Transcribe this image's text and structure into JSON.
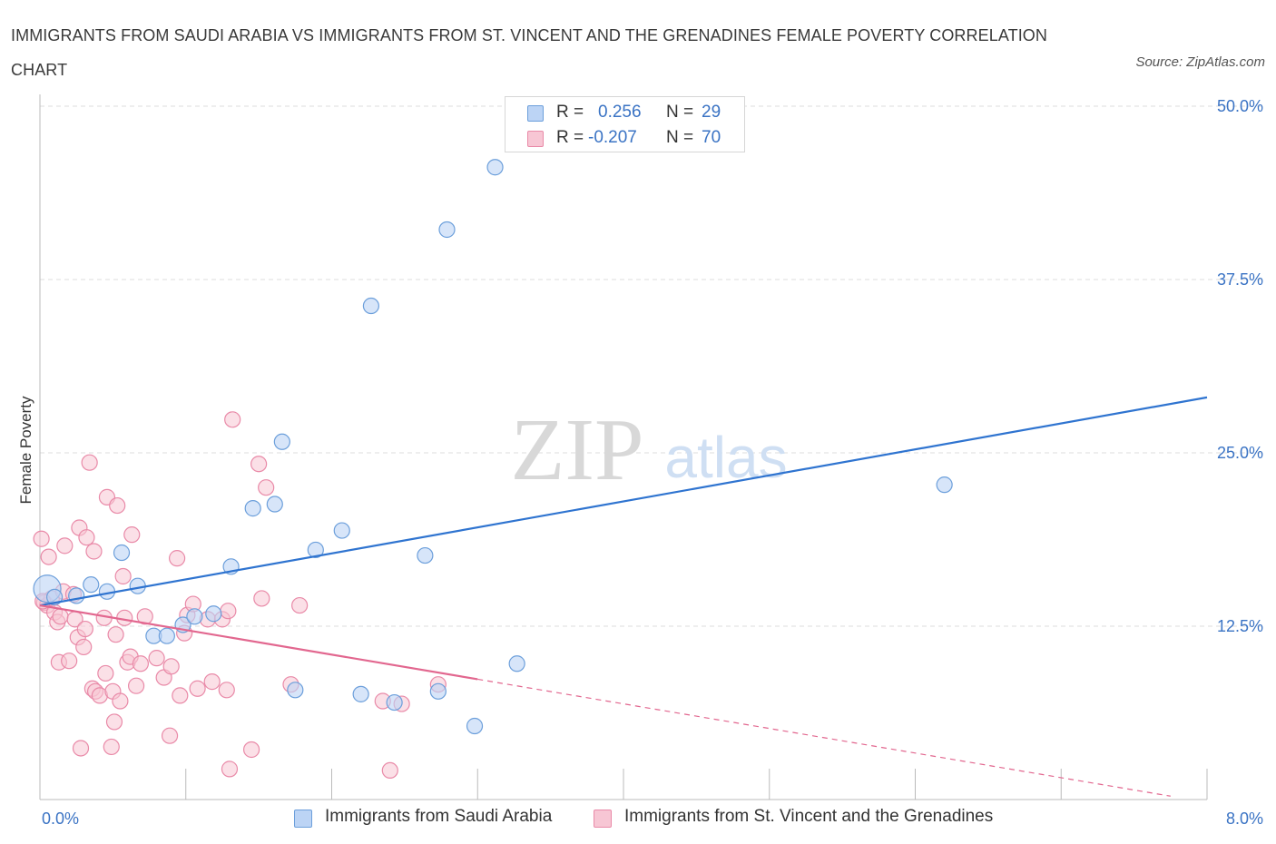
{
  "title": "IMMIGRANTS FROM SAUDI ARABIA VS IMMIGRANTS FROM ST. VINCENT AND THE GRENADINES FEMALE POVERTY CORRELATION CHART",
  "source": "Source: ZipAtlas.com",
  "watermark": {
    "zip": "ZIP",
    "atlas": "atlas"
  },
  "colors": {
    "series1_fill": "#bcd4f5",
    "series1_stroke": "#6c9fdb",
    "series1_line": "#2f74d0",
    "series2_fill": "#f7c6d4",
    "series2_stroke": "#e98aa8",
    "series2_line": "#e2678f",
    "axis_label": "#3a73c4",
    "grid": "#dddddd"
  },
  "legend": {
    "rows": [
      {
        "r_label": "R =",
        "r_value": "0.256",
        "n_label": "N =",
        "n_value": "29"
      },
      {
        "r_label": "R =",
        "r_value": "-0.207",
        "n_label": "N =",
        "n_value": "70"
      }
    ]
  },
  "bottom_legend": [
    "Immigrants from Saudi Arabia",
    "Immigrants from St. Vincent and the Grenadines"
  ],
  "chart_data": {
    "type": "scatter",
    "title": "IMMIGRANTS FROM SAUDI ARABIA VS IMMIGRANTS FROM ST. VINCENT AND THE GRENADINES FEMALE POVERTY CORRELATION CHART",
    "xlabel": "",
    "ylabel": "Female Poverty",
    "xlim": [
      0,
      8
    ],
    "ylim": [
      0,
      50
    ],
    "x_tick_labels": [
      "0.0%",
      "8.0%"
    ],
    "y_ticks": [
      12.5,
      25,
      37.5,
      50
    ],
    "y_tick_labels": [
      "12.5%",
      "25.0%",
      "37.5%",
      "50.0%"
    ],
    "series": [
      {
        "name": "Immigrants from Saudi Arabia",
        "R": 0.256,
        "N": 29,
        "trend": {
          "x": [
            0,
            8
          ],
          "y": [
            14.0,
            29.0
          ],
          "dashed_from": null
        },
        "points": [
          [
            0.05,
            15.2
          ],
          [
            0.1,
            14.6
          ],
          [
            0.25,
            14.7
          ],
          [
            0.35,
            15.5
          ],
          [
            0.46,
            15.0
          ],
          [
            0.56,
            17.8
          ],
          [
            0.67,
            15.4
          ],
          [
            0.78,
            11.8
          ],
          [
            0.87,
            11.8
          ],
          [
            0.98,
            12.6
          ],
          [
            1.06,
            13.2
          ],
          [
            1.19,
            13.4
          ],
          [
            1.31,
            16.8
          ],
          [
            1.46,
            21.0
          ],
          [
            1.61,
            21.3
          ],
          [
            1.66,
            25.8
          ],
          [
            1.75,
            7.9
          ],
          [
            1.89,
            18.0
          ],
          [
            2.07,
            19.4
          ],
          [
            2.27,
            35.6
          ],
          [
            2.2,
            7.6
          ],
          [
            2.43,
            7.0
          ],
          [
            2.64,
            17.6
          ],
          [
            2.73,
            7.8
          ],
          [
            2.79,
            41.1
          ],
          [
            2.98,
            5.3
          ],
          [
            3.12,
            45.6
          ],
          [
            3.27,
            9.8
          ],
          [
            6.2,
            22.7
          ]
        ]
      },
      {
        "name": "Immigrants from St. Vincent and the Grenadines",
        "R": -0.207,
        "N": 70,
        "trend": {
          "x": [
            0,
            8
          ],
          "y": [
            14.0,
            -0.2
          ],
          "dashed_from": 3.0
        },
        "points": [
          [
            0.01,
            18.8
          ],
          [
            0.03,
            14.2
          ],
          [
            0.05,
            14.0
          ],
          [
            0.06,
            17.5
          ],
          [
            0.08,
            14.5
          ],
          [
            0.1,
            13.5
          ],
          [
            0.12,
            12.8
          ],
          [
            0.13,
            9.9
          ],
          [
            0.14,
            13.2
          ],
          [
            0.16,
            15.0
          ],
          [
            0.17,
            18.3
          ],
          [
            0.2,
            10.0
          ],
          [
            0.23,
            14.8
          ],
          [
            0.24,
            13.0
          ],
          [
            0.26,
            11.7
          ],
          [
            0.27,
            19.6
          ],
          [
            0.28,
            3.7
          ],
          [
            0.3,
            11.0
          ],
          [
            0.31,
            12.3
          ],
          [
            0.32,
            18.9
          ],
          [
            0.34,
            24.3
          ],
          [
            0.36,
            8.0
          ],
          [
            0.37,
            17.9
          ],
          [
            0.38,
            7.8
          ],
          [
            0.41,
            7.5
          ],
          [
            0.44,
            13.1
          ],
          [
            0.45,
            9.1
          ],
          [
            0.46,
            21.8
          ],
          [
            0.49,
            3.8
          ],
          [
            0.5,
            7.8
          ],
          [
            0.51,
            5.6
          ],
          [
            0.52,
            11.9
          ],
          [
            0.53,
            21.2
          ],
          [
            0.55,
            7.1
          ],
          [
            0.57,
            16.1
          ],
          [
            0.58,
            13.1
          ],
          [
            0.6,
            9.9
          ],
          [
            0.62,
            10.3
          ],
          [
            0.63,
            19.1
          ],
          [
            0.66,
            8.2
          ],
          [
            0.69,
            9.8
          ],
          [
            0.72,
            13.2
          ],
          [
            0.8,
            10.2
          ],
          [
            0.85,
            8.8
          ],
          [
            0.89,
            4.6
          ],
          [
            0.9,
            9.6
          ],
          [
            0.94,
            17.4
          ],
          [
            0.96,
            7.5
          ],
          [
            0.99,
            12.0
          ],
          [
            1.01,
            13.3
          ],
          [
            1.05,
            14.1
          ],
          [
            1.08,
            8.0
          ],
          [
            1.15,
            13.0
          ],
          [
            1.18,
            8.5
          ],
          [
            1.25,
            13.0
          ],
          [
            1.28,
            7.9
          ],
          [
            1.29,
            13.6
          ],
          [
            1.3,
            2.2
          ],
          [
            1.32,
            27.4
          ],
          [
            1.45,
            3.6
          ],
          [
            1.5,
            24.2
          ],
          [
            1.52,
            14.5
          ],
          [
            1.55,
            22.5
          ],
          [
            1.72,
            8.3
          ],
          [
            1.78,
            14.0
          ],
          [
            2.35,
            7.1
          ],
          [
            2.4,
            2.1
          ],
          [
            2.73,
            8.3
          ],
          [
            2.48,
            6.9
          ],
          [
            0.02,
            14.3
          ]
        ]
      }
    ]
  }
}
